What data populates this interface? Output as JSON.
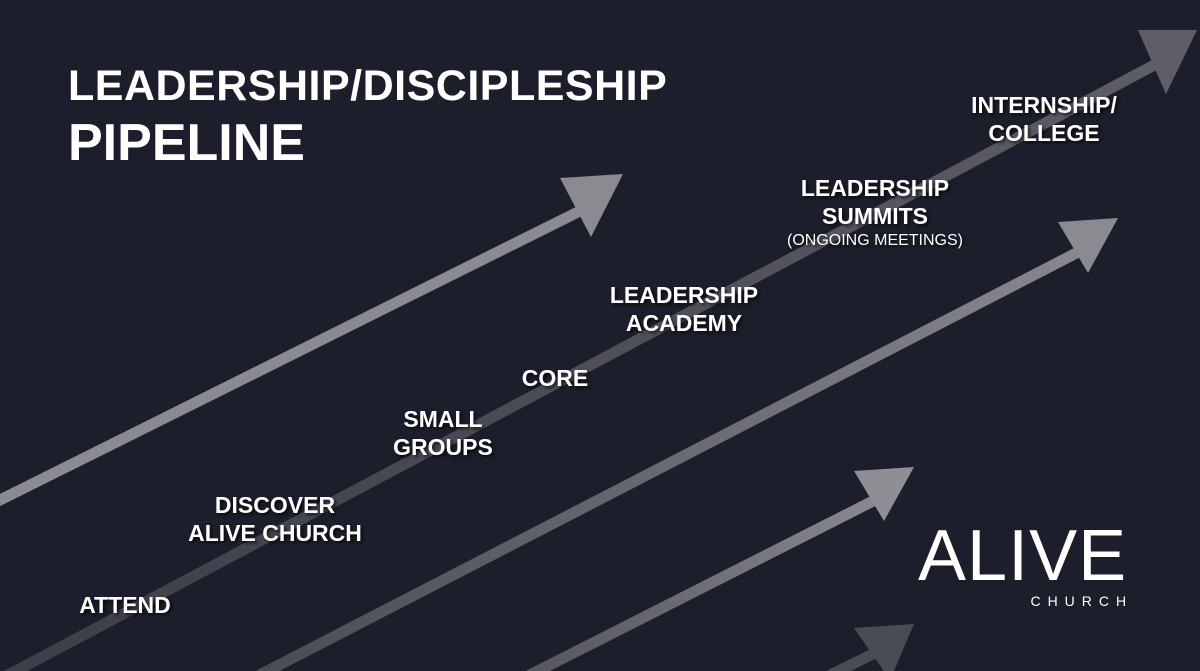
{
  "title": {
    "line1": "LEADERSHIP/DISCIPLESHIP",
    "line2": "PIPELINE"
  },
  "steps": [
    {
      "label": "ATTEND"
    },
    {
      "label": "DISCOVER",
      "label2": "ALIVE CHURCH"
    },
    {
      "label": "SMALL",
      "label2": "GROUPS"
    },
    {
      "label": "CORE"
    },
    {
      "label": "LEADERSHIP",
      "label2": "ACADEMY"
    },
    {
      "label": "LEADERSHIP",
      "label2": "SUMMITS",
      "note": "(ONGOING MEETINGS)"
    },
    {
      "label": "INTERNSHIP/",
      "label2": "COLLEGE"
    }
  ],
  "logo": {
    "main": "ALIVE",
    "sub": "CHURCH"
  },
  "colors": {
    "background": "#1c1f2b",
    "arrow": "#8a8b90",
    "text": "#ffffff"
  }
}
